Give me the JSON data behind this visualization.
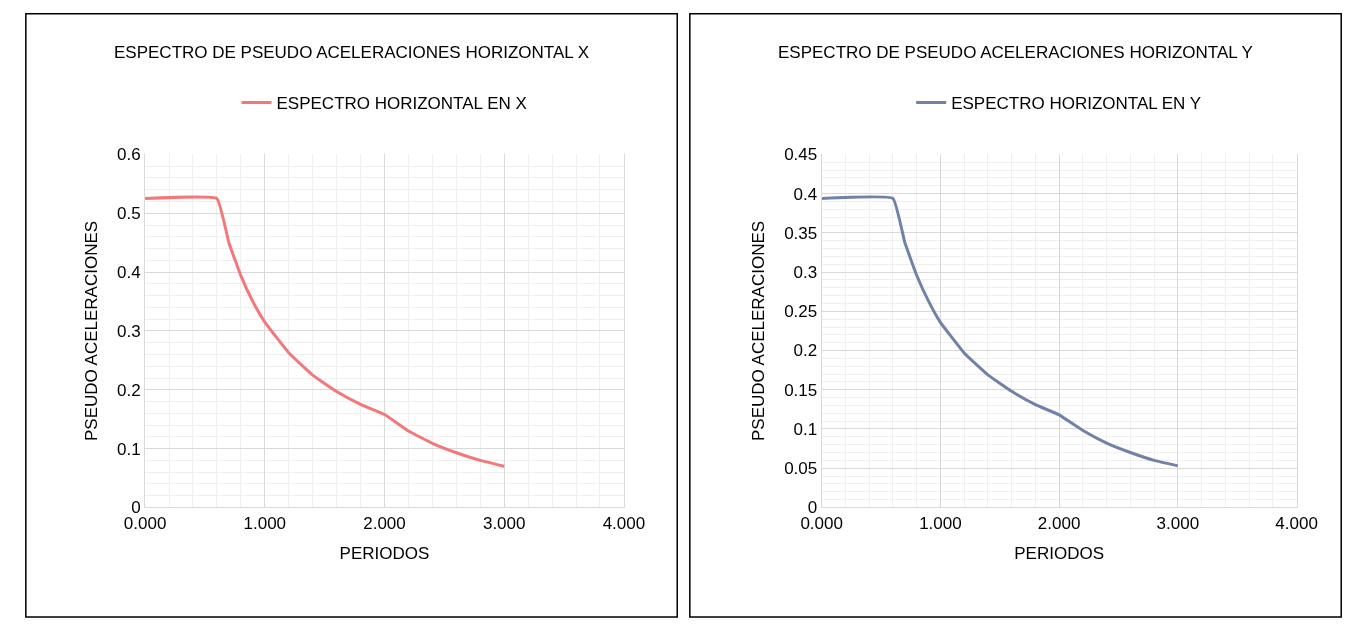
{
  "chart_data": [
    {
      "type": "line",
      "title": "ESPECTRO DE PSEUDO ACELERACIONES HORIZONTAL X",
      "xlabel": "PERIODOS",
      "ylabel": "PSEUDO ACELERACIONES",
      "legend": "top",
      "grid": true,
      "marker": "none",
      "line_style": "solid",
      "x": [
        0,
        0.6,
        0.7,
        0.8,
        0.9,
        1.0,
        1.2,
        1.4,
        1.6,
        1.8,
        2.0,
        2.2,
        2.4,
        2.6,
        2.8,
        3.0
      ],
      "series": [
        {
          "name": "ESPECTRO HORIZONTAL EN X",
          "color": "#f4777a",
          "values": [
            0.525,
            0.525,
            0.45,
            0.394,
            0.35,
            0.315,
            0.263,
            0.225,
            0.197,
            0.175,
            0.158,
            0.13,
            0.109,
            0.093,
            0.08,
            0.07
          ]
        }
      ],
      "xlim": [
        0,
        4
      ],
      "xticks": [
        {
          "value": 0,
          "label": "0.000"
        },
        {
          "value": 1,
          "label": "1.000"
        },
        {
          "value": 2,
          "label": "2.000"
        },
        {
          "value": 3,
          "label": "3.000"
        },
        {
          "value": 4,
          "label": "4.000"
        }
      ],
      "ylim": [
        0,
        0.6
      ],
      "yticks": [
        0,
        0.1,
        0.2,
        0.3,
        0.4,
        0.5,
        0.6
      ]
    },
    {
      "type": "line",
      "title": "ESPECTRO DE PSEUDO ACELERACIONES HORIZONTAL Y",
      "xlabel": "PERIODOS",
      "ylabel": "PSEUDO ACELERACIONES",
      "legend": "top",
      "grid": true,
      "marker": "none",
      "line_style": "solid",
      "x": [
        0,
        0.6,
        0.7,
        0.8,
        0.9,
        1.0,
        1.2,
        1.4,
        1.6,
        1.8,
        2.0,
        2.2,
        2.4,
        2.6,
        2.8,
        3.0
      ],
      "series": [
        {
          "name": "ESPECTRO HORIZONTAL EN Y",
          "color": "#7082a8",
          "values": [
            0.394,
            0.394,
            0.338,
            0.296,
            0.263,
            0.236,
            0.197,
            0.169,
            0.148,
            0.131,
            0.118,
            0.098,
            0.082,
            0.07,
            0.06,
            0.053
          ]
        }
      ],
      "xlim": [
        0,
        4
      ],
      "xticks": [
        {
          "value": 0,
          "label": "0.000"
        },
        {
          "value": 1,
          "label": "1.000"
        },
        {
          "value": 2,
          "label": "2.000"
        },
        {
          "value": 3,
          "label": "3.000"
        },
        {
          "value": 4,
          "label": "4.000"
        }
      ],
      "ylim": [
        0,
        0.45
      ],
      "yticks": [
        0,
        0.05,
        0.1,
        0.15,
        0.2,
        0.25,
        0.3,
        0.35,
        0.4,
        0.45
      ]
    }
  ]
}
